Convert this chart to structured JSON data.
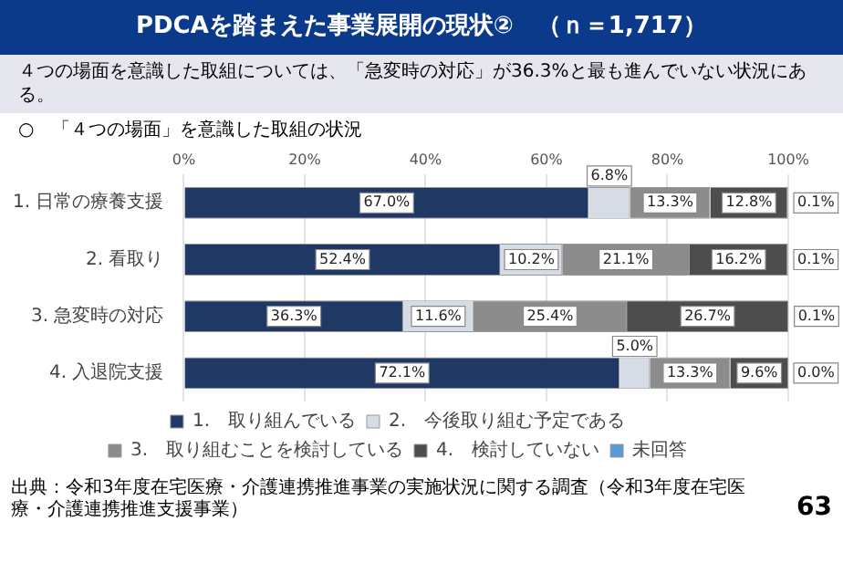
{
  "chart_data": {
    "type": "bar",
    "orientation": "horizontal",
    "stacked": true,
    "title": "PDCAを踏まえた事業展開の現状②　（ｎ＝1,717）",
    "subtitle": "４つの場面を意識した取組については、「急変時の対応」が36.3%と最も進んでいない状況にある。",
    "annotations": [
      "○　「４つの場面」を意識した取組の状況",
      "出典：令和3年度在宅医療・介護連携推進事業の実施状況に関する調査（令和3年度在宅医療・介護連携推進支援事業）",
      "63"
    ],
    "categories": [
      "1. 日常の療養支援",
      "2. 看取り",
      "3. 急変時の対応",
      "4. 入退院支援"
    ],
    "series": [
      {
        "name": "1.　取り組んでいる",
        "color": "#1f3864",
        "values": [
          67.0,
          52.4,
          36.3,
          72.1
        ],
        "value_labels": [
          "67.0%",
          "52.4%",
          "36.3%",
          "72.1%"
        ]
      },
      {
        "name": "2.　今後取り組む予定である",
        "color": "#d6dce5",
        "values": [
          6.8,
          10.2,
          11.6,
          5.0
        ],
        "value_labels": [
          "6.8%",
          "10.2%",
          "11.6%",
          "5.0%"
        ]
      },
      {
        "name": "3.　取り組むことを検討している",
        "color": "#8c8c8c",
        "values": [
          13.3,
          21.1,
          25.4,
          13.3
        ],
        "value_labels": [
          "13.3%",
          "21.1%",
          "25.4%",
          "13.3%"
        ]
      },
      {
        "name": "4.　検討していない",
        "color": "#4d4d4d",
        "values": [
          12.8,
          16.2,
          26.7,
          9.6
        ],
        "value_labels": [
          "12.8%",
          "16.2%",
          "26.7%",
          "9.6%"
        ]
      },
      {
        "name": "未回答",
        "color": "#5b9bd5",
        "values": [
          0.1,
          0.1,
          0.1,
          0.0
        ],
        "value_labels": [
          "0.1%",
          "0.1%",
          "0.1%",
          "0.0%"
        ]
      }
    ],
    "xlim": [
      0,
      100
    ],
    "xticks": [
      {
        "value": 0,
        "label": "0%"
      },
      {
        "value": 20,
        "label": "20%"
      },
      {
        "value": 40,
        "label": "40%"
      },
      {
        "value": 60,
        "label": "60%"
      },
      {
        "value": 80,
        "label": "80%"
      },
      {
        "value": 100,
        "label": "100%"
      }
    ],
    "grid": "x",
    "legend": "bottom"
  }
}
